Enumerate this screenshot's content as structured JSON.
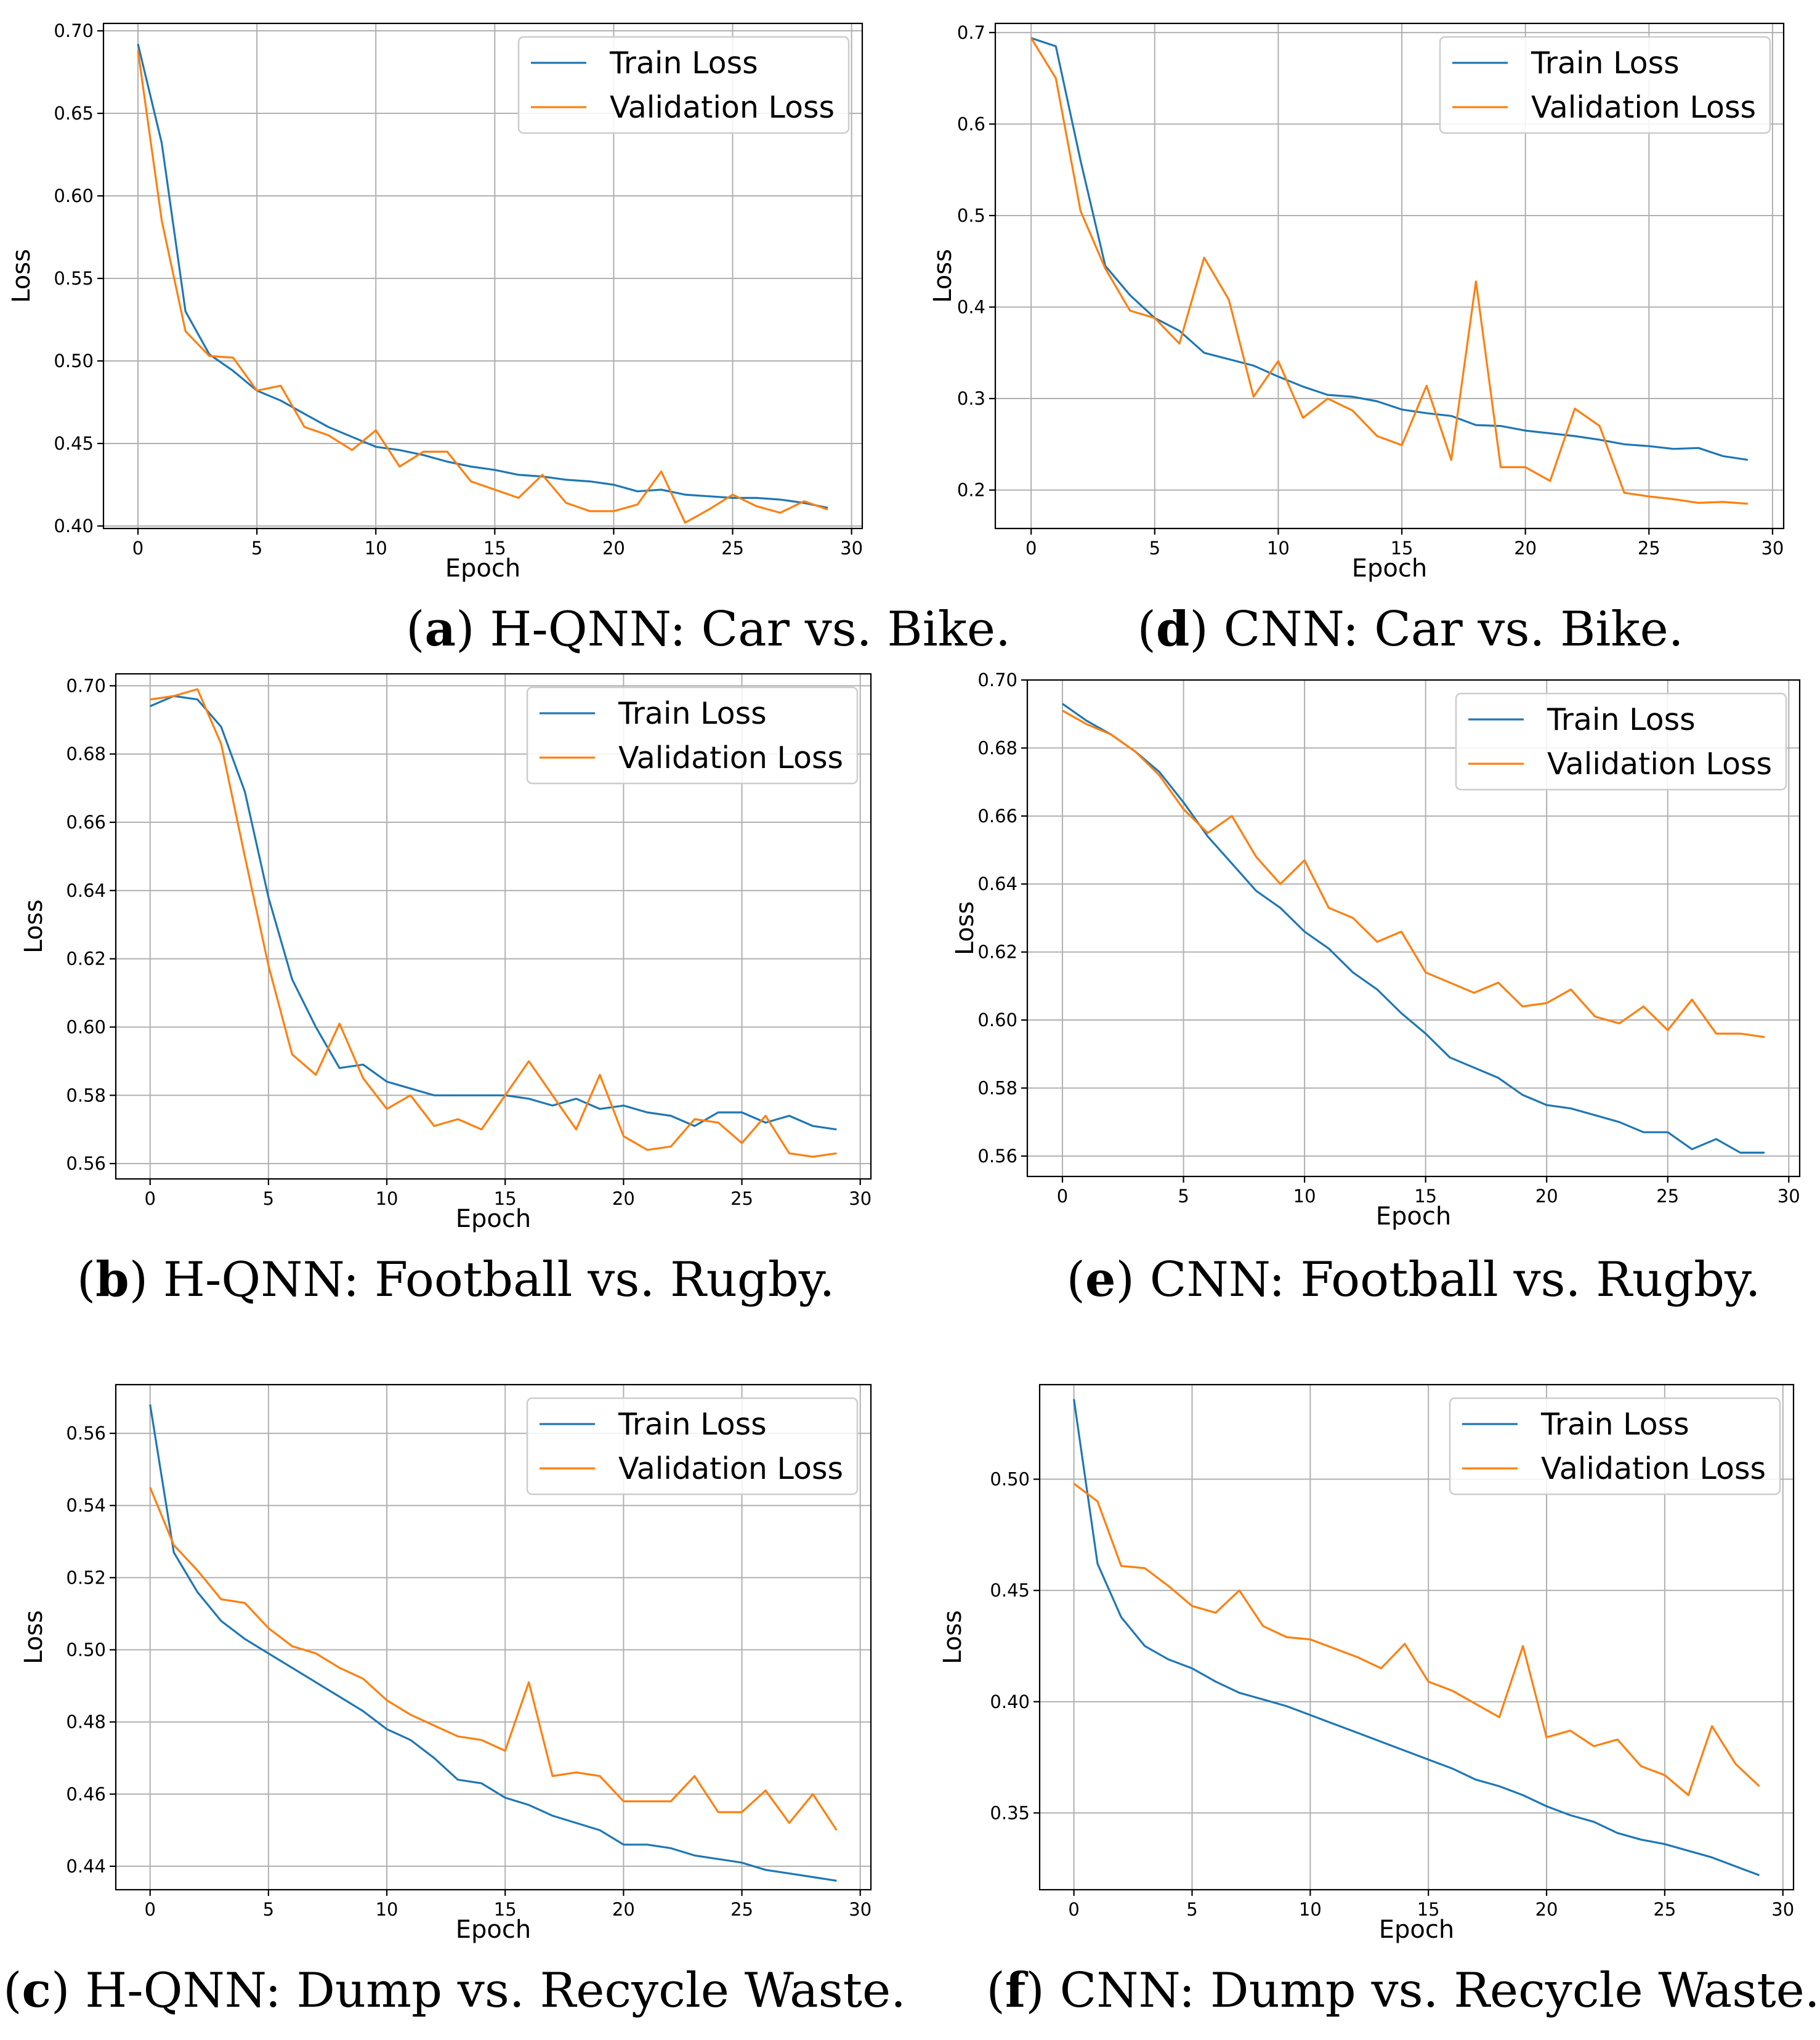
{
  "colors": {
    "train": "#1f77b4",
    "validation": "#ff7f0e"
  },
  "chart_data": [
    {
      "id": "a",
      "type": "line",
      "caption_letter": "a",
      "caption_text": "H-QNN: Car vs. Bike.",
      "xlabel": "Epoch",
      "ylabel": "Loss",
      "xlim": [
        -1.45,
        30.45
      ],
      "ylim": [
        0.3985,
        0.7045
      ],
      "xticks": [
        0,
        5,
        10,
        15,
        20,
        25,
        30
      ],
      "xtick_labels": [
        "0",
        "5",
        "10",
        "15",
        "20",
        "25",
        "30"
      ],
      "yticks": [
        0.4,
        0.45,
        0.5,
        0.55,
        0.6,
        0.65,
        0.7
      ],
      "ytick_labels": [
        "0.40",
        "0.45",
        "0.50",
        "0.55",
        "0.60",
        "0.65",
        "0.70"
      ],
      "legend_position": "upper right",
      "series": [
        {
          "name": "Train Loss",
          "color_key": "train",
          "x": [
            0,
            1,
            2,
            3,
            4,
            5,
            6,
            7,
            8,
            9,
            10,
            11,
            12,
            13,
            14,
            15,
            16,
            17,
            18,
            19,
            20,
            21,
            22,
            23,
            24,
            25,
            26,
            27,
            28,
            29
          ],
          "y": [
            0.692,
            0.632,
            0.53,
            0.504,
            0.494,
            0.482,
            0.476,
            0.468,
            0.46,
            0.454,
            0.448,
            0.446,
            0.443,
            0.439,
            0.436,
            0.434,
            0.431,
            0.43,
            0.428,
            0.427,
            0.425,
            0.421,
            0.422,
            0.419,
            0.418,
            0.417,
            0.417,
            0.416,
            0.414,
            0.411
          ]
        },
        {
          "name": "Validation Loss",
          "color_key": "validation",
          "x": [
            0,
            1,
            2,
            3,
            4,
            5,
            6,
            7,
            8,
            9,
            10,
            11,
            12,
            13,
            14,
            15,
            16,
            17,
            18,
            19,
            20,
            21,
            22,
            23,
            24,
            25,
            26,
            27,
            28,
            29
          ],
          "y": [
            0.688,
            0.585,
            0.518,
            0.503,
            0.502,
            0.482,
            0.485,
            0.46,
            0.455,
            0.446,
            0.458,
            0.436,
            0.445,
            0.445,
            0.427,
            0.422,
            0.417,
            0.431,
            0.414,
            0.409,
            0.409,
            0.413,
            0.433,
            0.402,
            0.41,
            0.419,
            0.412,
            0.408,
            0.415,
            0.41
          ]
        }
      ]
    },
    {
      "id": "d",
      "type": "line",
      "caption_letter": "d",
      "caption_text": "CNN: Car vs. Bike.",
      "xlabel": "Epoch",
      "ylabel": "Loss",
      "xlim": [
        -1.45,
        30.45
      ],
      "ylim": [
        0.158,
        0.71
      ],
      "xticks": [
        0,
        5,
        10,
        15,
        20,
        25,
        30
      ],
      "xtick_labels": [
        "0",
        "5",
        "10",
        "15",
        "20",
        "25",
        "30"
      ],
      "yticks": [
        0.2,
        0.3,
        0.4,
        0.5,
        0.6,
        0.7
      ],
      "ytick_labels": [
        "0.2",
        "0.3",
        "0.4",
        "0.5",
        "0.6",
        "0.7"
      ],
      "legend_position": "upper right",
      "series": [
        {
          "name": "Train Loss",
          "color_key": "train",
          "x": [
            0,
            1,
            2,
            3,
            4,
            5,
            6,
            7,
            8,
            9,
            10,
            11,
            12,
            13,
            14,
            15,
            16,
            17,
            18,
            19,
            20,
            21,
            22,
            23,
            24,
            25,
            26,
            27,
            28,
            29
          ],
          "y": [
            0.694,
            0.685,
            0.56,
            0.445,
            0.413,
            0.388,
            0.374,
            0.35,
            0.343,
            0.336,
            0.324,
            0.313,
            0.304,
            0.302,
            0.297,
            0.288,
            0.284,
            0.281,
            0.271,
            0.27,
            0.265,
            0.262,
            0.259,
            0.255,
            0.25,
            0.248,
            0.245,
            0.246,
            0.237,
            0.233
          ]
        },
        {
          "name": "Validation Loss",
          "color_key": "validation",
          "x": [
            0,
            1,
            2,
            3,
            4,
            5,
            6,
            7,
            8,
            9,
            10,
            11,
            12,
            13,
            14,
            15,
            16,
            17,
            18,
            19,
            20,
            21,
            22,
            23,
            24,
            25,
            26,
            27,
            28,
            29
          ],
          "y": [
            0.694,
            0.65,
            0.505,
            0.442,
            0.396,
            0.388,
            0.36,
            0.454,
            0.408,
            0.302,
            0.341,
            0.279,
            0.3,
            0.287,
            0.259,
            0.249,
            0.314,
            0.233,
            0.428,
            0.225,
            0.225,
            0.21,
            0.289,
            0.27,
            0.197,
            0.193,
            0.19,
            0.186,
            0.187,
            0.185
          ]
        }
      ]
    },
    {
      "id": "b",
      "type": "line",
      "caption_letter": "b",
      "caption_text": "H-QNN: Football vs. Rugby.",
      "xlabel": "Epoch",
      "ylabel": "Loss",
      "xlim": [
        -1.45,
        30.45
      ],
      "ylim": [
        0.5555,
        0.7035
      ],
      "xticks": [
        0,
        5,
        10,
        15,
        20,
        25,
        30
      ],
      "xtick_labels": [
        "0",
        "5",
        "10",
        "15",
        "20",
        "25",
        "30"
      ],
      "yticks": [
        0.56,
        0.58,
        0.6,
        0.62,
        0.64,
        0.66,
        0.68,
        0.7
      ],
      "ytick_labels": [
        "0.56",
        "0.58",
        "0.60",
        "0.62",
        "0.64",
        "0.66",
        "0.68",
        "0.70"
      ],
      "legend_position": "upper right",
      "series": [
        {
          "name": "Train Loss",
          "color_key": "train",
          "x": [
            0,
            1,
            2,
            3,
            4,
            5,
            6,
            7,
            8,
            9,
            10,
            11,
            12,
            13,
            14,
            15,
            16,
            17,
            18,
            19,
            20,
            21,
            22,
            23,
            24,
            25,
            26,
            27,
            28,
            29
          ],
          "y": [
            0.694,
            0.697,
            0.696,
            0.688,
            0.669,
            0.638,
            0.614,
            0.6,
            0.588,
            0.589,
            0.584,
            0.582,
            0.58,
            0.58,
            0.58,
            0.58,
            0.579,
            0.577,
            0.579,
            0.576,
            0.577,
            0.575,
            0.574,
            0.571,
            0.575,
            0.575,
            0.572,
            0.574,
            0.571,
            0.57
          ]
        },
        {
          "name": "Validation Loss",
          "color_key": "validation",
          "x": [
            0,
            1,
            2,
            3,
            4,
            5,
            6,
            7,
            8,
            9,
            10,
            11,
            12,
            13,
            14,
            15,
            16,
            17,
            18,
            19,
            20,
            21,
            22,
            23,
            24,
            25,
            26,
            27,
            28,
            29
          ],
          "y": [
            0.696,
            0.697,
            0.699,
            0.683,
            0.65,
            0.618,
            0.592,
            0.586,
            0.601,
            0.585,
            0.576,
            0.58,
            0.571,
            0.573,
            0.57,
            0.58,
            0.59,
            0.58,
            0.57,
            0.586,
            0.568,
            0.564,
            0.565,
            0.573,
            0.572,
            0.566,
            0.574,
            0.563,
            0.562,
            0.563
          ]
        }
      ]
    },
    {
      "id": "e",
      "type": "line",
      "caption_letter": "e",
      "caption_text": "CNN: Football vs. Rugby.",
      "xlabel": "Epoch",
      "ylabel": "Loss",
      "xlim": [
        -1.45,
        30.45
      ],
      "ylim": [
        0.554,
        0.7
      ],
      "xticks": [
        0,
        5,
        10,
        15,
        20,
        25,
        30
      ],
      "xtick_labels": [
        "0",
        "5",
        "10",
        "15",
        "20",
        "25",
        "30"
      ],
      "yticks": [
        0.56,
        0.58,
        0.6,
        0.62,
        0.64,
        0.66,
        0.68,
        0.7
      ],
      "ytick_labels": [
        "0.56",
        "0.58",
        "0.60",
        "0.62",
        "0.64",
        "0.66",
        "0.68",
        "0.70"
      ],
      "legend_position": "upper right",
      "series": [
        {
          "name": "Train Loss",
          "color_key": "train",
          "x": [
            0,
            1,
            2,
            3,
            4,
            5,
            6,
            7,
            8,
            9,
            10,
            11,
            12,
            13,
            14,
            15,
            16,
            17,
            18,
            19,
            20,
            21,
            22,
            23,
            24,
            25,
            26,
            27,
            28,
            29
          ],
          "y": [
            0.693,
            0.688,
            0.684,
            0.679,
            0.673,
            0.664,
            0.654,
            0.646,
            0.638,
            0.633,
            0.626,
            0.621,
            0.614,
            0.609,
            0.602,
            0.596,
            0.589,
            0.586,
            0.583,
            0.578,
            0.575,
            0.574,
            0.572,
            0.57,
            0.567,
            0.567,
            0.562,
            0.565,
            0.561,
            0.561
          ]
        },
        {
          "name": "Validation Loss",
          "color_key": "validation",
          "x": [
            0,
            1,
            2,
            3,
            4,
            5,
            6,
            7,
            8,
            9,
            10,
            11,
            12,
            13,
            14,
            15,
            16,
            17,
            18,
            19,
            20,
            21,
            22,
            23,
            24,
            25,
            26,
            27,
            28,
            29
          ],
          "y": [
            0.691,
            0.687,
            0.684,
            0.679,
            0.672,
            0.662,
            0.655,
            0.66,
            0.648,
            0.64,
            0.647,
            0.633,
            0.63,
            0.623,
            0.626,
            0.614,
            0.611,
            0.608,
            0.611,
            0.604,
            0.605,
            0.609,
            0.601,
            0.599,
            0.604,
            0.597,
            0.606,
            0.596,
            0.596,
            0.595
          ]
        }
      ]
    },
    {
      "id": "c",
      "type": "line",
      "caption_letter": "c",
      "caption_text": "H-QNN: Dump vs. Recycle Waste.",
      "xlabel": "Epoch",
      "ylabel": "Loss",
      "xlim": [
        -1.45,
        30.45
      ],
      "ylim": [
        0.4335,
        0.5735
      ],
      "xticks": [
        0,
        5,
        10,
        15,
        20,
        25,
        30
      ],
      "xtick_labels": [
        "0",
        "5",
        "10",
        "15",
        "20",
        "25",
        "30"
      ],
      "yticks": [
        0.44,
        0.46,
        0.48,
        0.5,
        0.52,
        0.54,
        0.56
      ],
      "ytick_labels": [
        "0.44",
        "0.46",
        "0.48",
        "0.50",
        "0.52",
        "0.54",
        "0.56"
      ],
      "legend_position": "upper right",
      "series": [
        {
          "name": "Train Loss",
          "color_key": "train",
          "x": [
            0,
            1,
            2,
            3,
            4,
            5,
            6,
            7,
            8,
            9,
            10,
            11,
            12,
            13,
            14,
            15,
            16,
            17,
            18,
            19,
            20,
            21,
            22,
            23,
            24,
            25,
            26,
            27,
            28,
            29
          ],
          "y": [
            0.568,
            0.527,
            0.516,
            0.508,
            0.503,
            0.499,
            0.495,
            0.491,
            0.487,
            0.483,
            0.478,
            0.475,
            0.47,
            0.464,
            0.463,
            0.459,
            0.457,
            0.454,
            0.452,
            0.45,
            0.446,
            0.446,
            0.445,
            0.443,
            0.442,
            0.441,
            0.439,
            0.438,
            0.437,
            0.436
          ]
        },
        {
          "name": "Validation Loss",
          "color_key": "validation",
          "x": [
            0,
            1,
            2,
            3,
            4,
            5,
            6,
            7,
            8,
            9,
            10,
            11,
            12,
            13,
            14,
            15,
            16,
            17,
            18,
            19,
            20,
            21,
            22,
            23,
            24,
            25,
            26,
            27,
            28,
            29
          ],
          "y": [
            0.545,
            0.529,
            0.522,
            0.514,
            0.513,
            0.506,
            0.501,
            0.499,
            0.495,
            0.492,
            0.486,
            0.482,
            0.479,
            0.476,
            0.475,
            0.472,
            0.491,
            0.465,
            0.466,
            0.465,
            0.458,
            0.458,
            0.458,
            0.465,
            0.455,
            0.455,
            0.461,
            0.452,
            0.46,
            0.45
          ]
        }
      ]
    },
    {
      "id": "f",
      "type": "line",
      "caption_letter": "f",
      "caption_text": "CNN: Dump vs. Recycle Waste.",
      "xlabel": "Epoch",
      "ylabel": "Loss",
      "xlim": [
        -1.45,
        30.45
      ],
      "ylim": [
        0.3155,
        0.5425
      ],
      "xticks": [
        0,
        5,
        10,
        15,
        20,
        25,
        30
      ],
      "xtick_labels": [
        "0",
        "5",
        "10",
        "15",
        "20",
        "25",
        "30"
      ],
      "yticks": [
        0.35,
        0.4,
        0.45,
        0.5
      ],
      "ytick_labels": [
        "0.35",
        "0.40",
        "0.45",
        "0.50"
      ],
      "legend_position": "upper right",
      "series": [
        {
          "name": "Train Loss",
          "color_key": "train",
          "x": [
            0,
            1,
            2,
            3,
            4,
            5,
            6,
            7,
            8,
            9,
            10,
            11,
            12,
            13,
            14,
            15,
            16,
            17,
            18,
            19,
            20,
            21,
            22,
            23,
            24,
            25,
            26,
            27,
            28,
            29
          ],
          "y": [
            0.536,
            0.462,
            0.438,
            0.425,
            0.419,
            0.415,
            0.409,
            0.404,
            0.401,
            0.398,
            0.394,
            0.39,
            0.386,
            0.382,
            0.378,
            0.374,
            0.37,
            0.365,
            0.362,
            0.358,
            0.353,
            0.349,
            0.346,
            0.341,
            0.338,
            0.336,
            0.333,
            0.33,
            0.326,
            0.322
          ]
        },
        {
          "name": "Validation Loss",
          "color_key": "validation",
          "x": [
            0,
            1,
            2,
            3,
            4,
            5,
            6,
            7,
            8,
            9,
            10,
            11,
            12,
            13,
            14,
            15,
            16,
            17,
            18,
            19,
            20,
            21,
            22,
            23,
            24,
            25,
            26,
            27,
            28,
            29
          ],
          "y": [
            0.498,
            0.49,
            0.461,
            0.46,
            0.452,
            0.443,
            0.44,
            0.45,
            0.434,
            0.429,
            0.428,
            0.424,
            0.42,
            0.415,
            0.426,
            0.409,
            0.405,
            0.399,
            0.393,
            0.425,
            0.384,
            0.387,
            0.38,
            0.383,
            0.371,
            0.367,
            0.358,
            0.389,
            0.372,
            0.362
          ]
        }
      ]
    }
  ]
}
